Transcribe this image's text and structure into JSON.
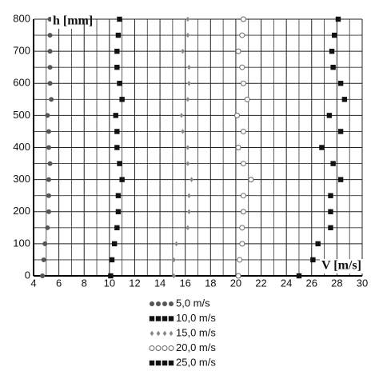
{
  "chart_data": {
    "type": "scatter",
    "xlabel": "V [m/s]",
    "ylabel": "h [mm]",
    "xlim": [
      4,
      30
    ],
    "ylim": [
      0,
      800
    ],
    "xticks": [
      4,
      6,
      8,
      10,
      12,
      14,
      16,
      18,
      20,
      22,
      24,
      26,
      28,
      30
    ],
    "yticks": [
      0,
      100,
      200,
      300,
      400,
      500,
      600,
      700,
      800
    ],
    "grid": true,
    "minor_grid": true,
    "legend": "bottom",
    "y": [
      0,
      50,
      100,
      150,
      200,
      250,
      300,
      350,
      400,
      450,
      500,
      550,
      600,
      650,
      700,
      750,
      800
    ],
    "series": [
      {
        "name": "5,0 m/s",
        "color": "#555555",
        "marker": "circle",
        "x": [
          4.7,
          4.8,
          4.9,
          5.1,
          5.2,
          5.2,
          5.2,
          5.3,
          5.2,
          5.2,
          5.1,
          5.4,
          5.3,
          5.3,
          5.3,
          5.3,
          5.3
        ]
      },
      {
        "name": "10,0 m/s",
        "color": "#111111",
        "marker": "square",
        "x": [
          10.1,
          10.2,
          10.4,
          10.6,
          10.7,
          10.7,
          11.0,
          10.8,
          10.6,
          10.6,
          10.5,
          11.0,
          10.8,
          10.6,
          10.6,
          10.7,
          10.8
        ]
      },
      {
        "name": "15,0 m/s",
        "color": "#888888",
        "marker": "diamond",
        "x": [
          15.1,
          15.1,
          15.3,
          16.2,
          16.3,
          16.3,
          16.5,
          16.2,
          16.2,
          15.8,
          15.7,
          16.2,
          16.3,
          16.3,
          15.8,
          16.2,
          16.2
        ]
      },
      {
        "name": "20,0 m/s",
        "color": "#666666",
        "marker": "circle-open",
        "x": [
          20.2,
          20.3,
          20.5,
          20.5,
          20.6,
          20.6,
          21.2,
          20.6,
          20.2,
          20.6,
          20.1,
          20.9,
          20.6,
          20.5,
          20.2,
          20.5,
          20.6
        ]
      },
      {
        "name": "25,0 m/s",
        "color": "#111111",
        "marker": "square",
        "x": [
          25.0,
          26.1,
          26.5,
          27.5,
          27.5,
          27.5,
          28.3,
          27.7,
          26.8,
          28.3,
          27.4,
          28.6,
          28.3,
          27.7,
          27.6,
          27.8,
          28.1
        ]
      }
    ]
  }
}
